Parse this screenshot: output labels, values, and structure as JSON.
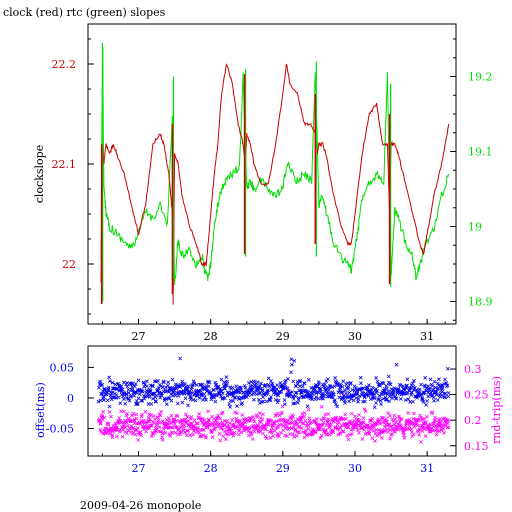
{
  "title": "clock (red) rtc (green) slopes",
  "footer": "2009-04-26 monopole",
  "colors": {
    "clock": "#cc0000",
    "rtc": "#00dd00",
    "offset": "#0000ee",
    "rndtrip": "#ff00ff",
    "axis": "#000000",
    "xtick": "#000000"
  },
  "chart_data": [
    {
      "type": "line",
      "ylabel": "clockslope",
      "grid": false,
      "x_range": [
        26.3,
        31.4
      ],
      "x_ticks": [
        "27",
        "28",
        "29",
        "30",
        "31"
      ],
      "y_left": {
        "range": [
          21.94,
          22.24
        ],
        "ticks": [
          "22",
          "22.1",
          "22.2"
        ],
        "tick_values": [
          22.0,
          22.1,
          22.2
        ]
      },
      "y_right": {
        "range": [
          18.87,
          19.27
        ],
        "ticks": [
          "18.9",
          "19",
          "19.1",
          "19.2"
        ],
        "tick_values": [
          18.9,
          19.0,
          19.1,
          19.2
        ]
      },
      "series": [
        {
          "key": "clock",
          "axis": "left",
          "x": [
            26.48,
            26.5,
            26.52,
            26.55,
            26.6,
            26.65,
            26.7,
            26.8,
            26.9,
            27.0,
            27.1,
            27.2,
            27.3,
            27.35,
            27.42,
            27.47,
            27.48,
            27.5,
            27.55,
            27.6,
            27.7,
            27.8,
            27.88,
            27.94,
            28.0,
            28.05,
            28.1,
            28.15,
            28.22,
            28.3,
            28.38,
            28.45,
            28.48,
            28.5,
            28.55,
            28.6,
            28.7,
            28.8,
            28.9,
            29.0,
            29.05,
            29.1,
            29.2,
            29.3,
            29.38,
            29.45,
            29.48,
            29.5,
            29.55,
            29.6,
            29.7,
            29.8,
            29.9,
            29.95,
            30.0,
            30.05,
            30.1,
            30.2,
            30.3,
            30.38,
            30.45,
            30.48,
            30.5,
            30.55,
            30.6,
            30.7,
            30.8,
            30.9,
            30.95,
            31.0,
            31.1,
            31.2,
            31.3
          ],
          "values": [
            21.98,
            22.12,
            22.1,
            22.12,
            22.11,
            22.12,
            22.11,
            22.09,
            22.06,
            22.03,
            22.06,
            22.12,
            22.13,
            22.12,
            22.09,
            22.05,
            21.96,
            22.11,
            22.1,
            22.07,
            22.04,
            22.02,
            22.0,
            22.0,
            22.05,
            22.09,
            22.12,
            22.17,
            22.2,
            22.18,
            22.14,
            22.12,
            22.1,
            22.13,
            22.12,
            22.1,
            22.08,
            22.08,
            22.12,
            22.17,
            22.2,
            22.18,
            22.17,
            22.14,
            22.14,
            22.13,
            22.11,
            22.12,
            22.12,
            22.11,
            22.07,
            22.04,
            22.02,
            22.02,
            22.05,
            22.08,
            22.11,
            22.15,
            22.16,
            22.12,
            22.12,
            22.05,
            22.12,
            22.12,
            22.11,
            22.08,
            22.05,
            22.02,
            22.01,
            22.03,
            22.07,
            22.1,
            22.14
          ]
        },
        {
          "key": "rtc",
          "axis": "right",
          "x": [
            26.48,
            26.5,
            26.52,
            26.55,
            26.6,
            26.7,
            26.8,
            26.9,
            27.0,
            27.1,
            27.2,
            27.3,
            27.4,
            27.47,
            27.5,
            27.55,
            27.6,
            27.7,
            27.8,
            27.88,
            27.92,
            27.96,
            28.0,
            28.05,
            28.1,
            28.15,
            28.2,
            28.3,
            28.4,
            28.45,
            28.5,
            28.55,
            28.6,
            28.7,
            28.8,
            28.9,
            29.0,
            29.05,
            29.1,
            29.2,
            29.3,
            29.4,
            29.45,
            29.5,
            29.55,
            29.6,
            29.7,
            29.8,
            29.9,
            29.95,
            30.0,
            30.05,
            30.1,
            30.2,
            30.3,
            30.4,
            30.45,
            30.5,
            30.55,
            30.6,
            30.7,
            30.8,
            30.85,
            30.9,
            31.0,
            31.1,
            31.2,
            31.3
          ],
          "values": [
            18.95,
            19.25,
            19.05,
            19.02,
            19.0,
            18.99,
            18.98,
            18.97,
            18.99,
            19.02,
            19.01,
            19.03,
            19.0,
            19.15,
            18.92,
            18.98,
            18.96,
            18.97,
            18.95,
            18.96,
            18.94,
            18.93,
            18.95,
            19.0,
            19.03,
            19.05,
            19.06,
            19.07,
            19.08,
            19.2,
            19.05,
            19.06,
            19.05,
            19.06,
            19.05,
            19.04,
            19.05,
            19.08,
            19.08,
            19.06,
            19.07,
            19.06,
            19.21,
            19.03,
            19.04,
            19.02,
            18.98,
            18.96,
            18.95,
            18.94,
            18.97,
            19.0,
            19.04,
            19.06,
            19.07,
            19.06,
            19.2,
            18.93,
            19.02,
            19.01,
            18.98,
            18.96,
            18.93,
            18.95,
            18.98,
            19.0,
            19.04,
            19.07
          ]
        }
      ],
      "spikes": [
        {
          "x": 26.49,
          "clock": [
            21.96,
            22.12
          ],
          "rtc": [
            18.9,
            19.24
          ]
        },
        {
          "x": 27.47,
          "clock": [
            21.97,
            22.14
          ],
          "rtc": [
            18.93,
            19.2
          ]
        },
        {
          "x": 28.47,
          "clock": [
            22.01,
            22.19
          ],
          "rtc": [
            18.96,
            19.21
          ]
        },
        {
          "x": 29.45,
          "clock": [
            22.02,
            22.17
          ],
          "rtc": [
            18.96,
            19.22
          ]
        },
        {
          "x": 30.48,
          "clock": [
            21.98,
            22.15
          ],
          "rtc": [
            18.92,
            19.19
          ]
        }
      ]
    },
    {
      "type": "scatter",
      "ylabel_left": "offset(ms)",
      "ylabel_right": "rnd-trip(ms)",
      "grid": false,
      "x_range": [
        26.3,
        31.4
      ],
      "x_ticks": [
        "27",
        "28",
        "29",
        "30",
        "31"
      ],
      "y_left": {
        "range": [
          -0.095,
          0.085
        ],
        "ticks": [
          "0.05",
          "0",
          "-0.05"
        ],
        "tick_values": [
          0.05,
          0.0,
          -0.05
        ]
      },
      "y_right": {
        "range": [
          0.13,
          0.345
        ],
        "ticks": [
          "0.15",
          "0.2",
          "0.25",
          "0.3"
        ],
        "tick_values": [
          0.15,
          0.2,
          0.25,
          0.3
        ]
      },
      "series": [
        {
          "key": "offset",
          "axis": "left",
          "marker": "x",
          "x_range": [
            26.45,
            31.3
          ],
          "center": 0.01,
          "spread": 0.015
        },
        {
          "key": "rndtrip",
          "axis": "right",
          "marker": "x",
          "x_range": [
            26.45,
            31.3
          ],
          "center": 0.19,
          "spread": 0.018
        }
      ]
    }
  ]
}
